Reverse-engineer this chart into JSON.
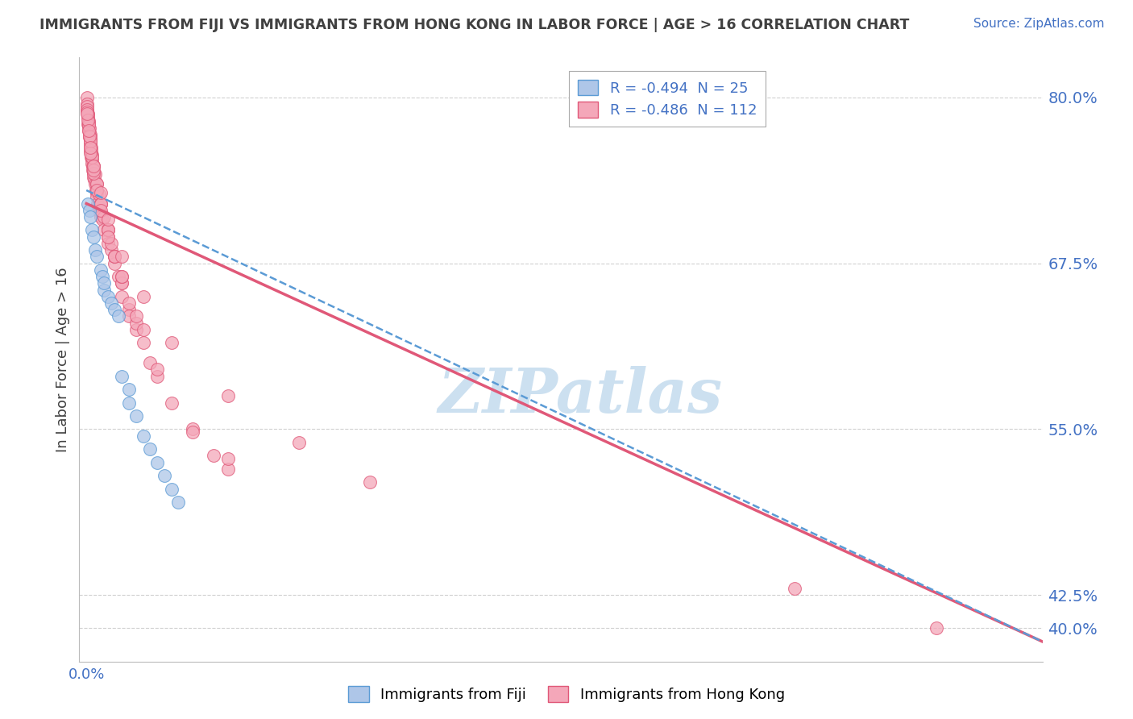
{
  "title": "IMMIGRANTS FROM FIJI VS IMMIGRANTS FROM HONG KONG IN LABOR FORCE | AGE > 16 CORRELATION CHART",
  "source": "Source: ZipAtlas.com",
  "ylabel": "In Labor Force | Age > 16",
  "watermark": "ZIPatlas",
  "fiji_R": -0.494,
  "fiji_N": 25,
  "hk_R": -0.486,
  "hk_N": 112,
  "fiji_color": "#aec6e8",
  "hk_color": "#f4a7b9",
  "fiji_edge_color": "#5b9bd5",
  "hk_edge_color": "#e05878",
  "fiji_line_color": "#5b9bd5",
  "hk_line_color": "#e05878",
  "title_color": "#404040",
  "axis_label_color": "#404040",
  "tick_color": "#4472c4",
  "grid_color": "#d0d0d0",
  "source_color": "#4472c4",
  "watermark_color": "#cce0f0",
  "ylim_min": 0.375,
  "ylim_max": 0.83,
  "xlim_min": -0.001,
  "xlim_max": 0.135,
  "yticks": [
    0.4,
    0.425,
    0.55,
    0.675,
    0.8
  ],
  "ytick_labels": [
    "40.0%",
    "42.5%",
    "55.0%",
    "67.5%",
    "80.0%"
  ],
  "xtick_val": 0.0,
  "xtick_label": "0.0%",
  "fiji_line_x0": 0.0,
  "fiji_line_y0": 0.73,
  "fiji_line_x1": 0.135,
  "fiji_line_y1": 0.39,
  "hk_line_x0": 0.0,
  "hk_line_y0": 0.72,
  "hk_line_x1": 0.135,
  "hk_line_y1": 0.39,
  "fiji_points_x": [
    0.0002,
    0.0004,
    0.0005,
    0.0008,
    0.001,
    0.0012,
    0.0015,
    0.002,
    0.0022,
    0.0025,
    0.003,
    0.0035,
    0.004,
    0.0045,
    0.005,
    0.006,
    0.007,
    0.008,
    0.009,
    0.01,
    0.011,
    0.012,
    0.013,
    0.0025,
    0.006
  ],
  "fiji_points_y": [
    0.72,
    0.715,
    0.71,
    0.7,
    0.695,
    0.685,
    0.68,
    0.67,
    0.665,
    0.655,
    0.65,
    0.645,
    0.64,
    0.635,
    0.59,
    0.57,
    0.56,
    0.545,
    0.535,
    0.525,
    0.515,
    0.505,
    0.495,
    0.66,
    0.58
  ],
  "hk_points_x": [
    0.0001,
    0.0001,
    0.0002,
    0.0002,
    0.0003,
    0.0003,
    0.0004,
    0.0004,
    0.0005,
    0.0005,
    0.0006,
    0.0006,
    0.0007,
    0.0007,
    0.0008,
    0.0008,
    0.0009,
    0.0009,
    0.001,
    0.001,
    0.0011,
    0.0012,
    0.0013,
    0.0014,
    0.0015,
    0.0016,
    0.0017,
    0.0018,
    0.002,
    0.002,
    0.0022,
    0.0025,
    0.003,
    0.003,
    0.0035,
    0.004,
    0.004,
    0.0045,
    0.005,
    0.005,
    0.006,
    0.006,
    0.007,
    0.008,
    0.009,
    0.01,
    0.012,
    0.015,
    0.018,
    0.02,
    0.0001,
    0.0002,
    0.0003,
    0.0004,
    0.0005,
    0.0006,
    0.0007,
    0.0008,
    0.001,
    0.0012,
    0.0015,
    0.0018,
    0.002,
    0.0025,
    0.003,
    0.0035,
    0.004,
    0.005,
    0.006,
    0.007,
    0.0001,
    0.0002,
    0.0003,
    0.0005,
    0.0007,
    0.001,
    0.0015,
    0.002,
    0.003,
    0.004,
    0.0001,
    0.0003,
    0.0005,
    0.0008,
    0.001,
    0.002,
    0.003,
    0.005,
    0.007,
    0.01,
    0.0001,
    0.0002,
    0.0004,
    0.0006,
    0.001,
    0.0015,
    0.002,
    0.003,
    0.005,
    0.008,
    0.015,
    0.02,
    0.1,
    0.12,
    0.0001,
    0.0003,
    0.0006,
    0.001,
    0.002,
    0.003,
    0.005,
    0.008,
    0.012,
    0.02,
    0.03,
    0.04
  ],
  "hk_points_y": [
    0.8,
    0.79,
    0.785,
    0.78,
    0.778,
    0.775,
    0.773,
    0.77,
    0.768,
    0.765,
    0.763,
    0.76,
    0.758,
    0.755,
    0.753,
    0.75,
    0.748,
    0.745,
    0.743,
    0.74,
    0.738,
    0.735,
    0.73,
    0.728,
    0.725,
    0.72,
    0.718,
    0.715,
    0.713,
    0.71,
    0.708,
    0.7,
    0.695,
    0.69,
    0.685,
    0.68,
    0.675,
    0.665,
    0.66,
    0.65,
    0.64,
    0.635,
    0.625,
    0.615,
    0.6,
    0.59,
    0.57,
    0.55,
    0.53,
    0.52,
    0.795,
    0.788,
    0.782,
    0.777,
    0.772,
    0.767,
    0.762,
    0.757,
    0.748,
    0.742,
    0.735,
    0.727,
    0.72,
    0.71,
    0.7,
    0.69,
    0.68,
    0.66,
    0.645,
    0.63,
    0.793,
    0.787,
    0.781,
    0.77,
    0.76,
    0.748,
    0.735,
    0.72,
    0.7,
    0.68,
    0.791,
    0.779,
    0.767,
    0.755,
    0.743,
    0.72,
    0.7,
    0.665,
    0.635,
    0.595,
    0.789,
    0.783,
    0.771,
    0.758,
    0.745,
    0.73,
    0.715,
    0.695,
    0.665,
    0.625,
    0.548,
    0.528,
    0.43,
    0.4,
    0.788,
    0.775,
    0.762,
    0.748,
    0.728,
    0.708,
    0.68,
    0.65,
    0.615,
    0.575,
    0.54,
    0.51
  ]
}
